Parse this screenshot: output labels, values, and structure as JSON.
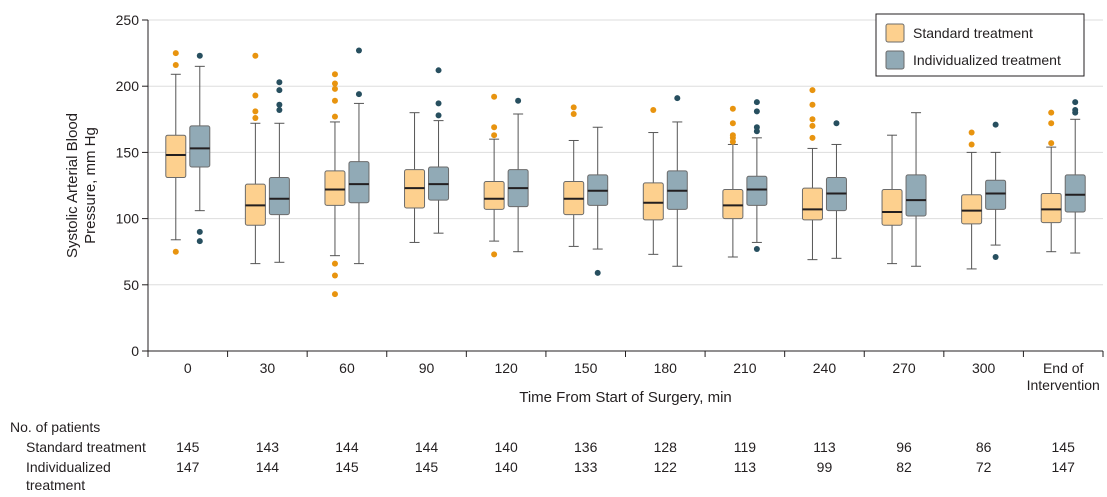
{
  "chart_data": {
    "type": "box",
    "ylabel": "Systolic Arterial Blood Pressure, mm Hg",
    "xlabel": "Time From Start of Surgery, min",
    "ylim": [
      0,
      250
    ],
    "yticks": [
      0,
      50,
      100,
      150,
      200,
      250
    ],
    "grid": "horizontal",
    "legend_position": "top-right",
    "categories": [
      "0",
      "30",
      "60",
      "90",
      "120",
      "150",
      "180",
      "210",
      "240",
      "270",
      "300",
      "End of Intervention"
    ],
    "category_lines": [
      [
        "0"
      ],
      [
        "30"
      ],
      [
        "60"
      ],
      [
        "90"
      ],
      [
        "120"
      ],
      [
        "150"
      ],
      [
        "180"
      ],
      [
        "210"
      ],
      [
        "240"
      ],
      [
        "270"
      ],
      [
        "300"
      ],
      [
        "End of",
        "Intervention"
      ]
    ],
    "series": [
      {
        "name": "Standard treatment",
        "color": "#fdd08e",
        "outlier_color": "#e8940f",
        "boxes": [
          {
            "min": 84,
            "q1": 131,
            "median": 148,
            "q3": 163,
            "max": 209,
            "outliers": [
              75,
              216,
              225
            ]
          },
          {
            "min": 66,
            "q1": 95,
            "median": 110,
            "q3": 126,
            "max": 172,
            "outliers": [
              176,
              181,
              193,
              223
            ]
          },
          {
            "min": 72,
            "q1": 110,
            "median": 122,
            "q3": 136,
            "max": 173,
            "outliers": [
              43,
              57,
              66,
              177,
              189,
              198,
              202,
              209
            ]
          },
          {
            "min": 82,
            "q1": 108,
            "median": 123,
            "q3": 137,
            "max": 180,
            "outliers": []
          },
          {
            "min": 83,
            "q1": 107,
            "median": 115,
            "q3": 128,
            "max": 160,
            "outliers": [
              73,
              163,
              169,
              192
            ]
          },
          {
            "min": 79,
            "q1": 103,
            "median": 115,
            "q3": 128,
            "max": 159,
            "outliers": [
              179,
              184
            ]
          },
          {
            "min": 73,
            "q1": 99,
            "median": 112,
            "q3": 127,
            "max": 165,
            "outliers": [
              182
            ]
          },
          {
            "min": 71,
            "q1": 100,
            "median": 110,
            "q3": 122,
            "max": 156,
            "outliers": [
              158,
              161,
              163,
              172,
              183
            ]
          },
          {
            "min": 69,
            "q1": 99,
            "median": 107,
            "q3": 123,
            "max": 153,
            "outliers": [
              161,
              170,
              175,
              186,
              197
            ]
          },
          {
            "min": 66,
            "q1": 95,
            "median": 105,
            "q3": 122,
            "max": 163,
            "outliers": []
          },
          {
            "min": 62,
            "q1": 96,
            "median": 106,
            "q3": 118,
            "max": 150,
            "outliers": [
              156,
              165
            ]
          },
          {
            "min": 75,
            "q1": 97,
            "median": 107,
            "q3": 119,
            "max": 154,
            "outliers": [
              157,
              172,
              180
            ]
          }
        ]
      },
      {
        "name": "Individualized treatment",
        "color": "#91aab6",
        "outlier_color": "#274f5f",
        "boxes": [
          {
            "min": 106,
            "q1": 139,
            "median": 153,
            "q3": 170,
            "max": 215,
            "outliers": [
              83,
              90,
              223
            ]
          },
          {
            "min": 67,
            "q1": 103,
            "median": 115,
            "q3": 131,
            "max": 172,
            "outliers": [
              182,
              186,
              197,
              203
            ]
          },
          {
            "min": 66,
            "q1": 112,
            "median": 126,
            "q3": 143,
            "max": 187,
            "outliers": [
              194,
              227
            ]
          },
          {
            "min": 89,
            "q1": 114,
            "median": 126,
            "q3": 139,
            "max": 174,
            "outliers": [
              178,
              187,
              212
            ]
          },
          {
            "min": 75,
            "q1": 109,
            "median": 123,
            "q3": 137,
            "max": 179,
            "outliers": [
              189
            ]
          },
          {
            "min": 77,
            "q1": 110,
            "median": 121,
            "q3": 133,
            "max": 169,
            "outliers": [
              59
            ]
          },
          {
            "min": 64,
            "q1": 107,
            "median": 121,
            "q3": 136,
            "max": 173,
            "outliers": [
              191
            ]
          },
          {
            "min": 82,
            "q1": 110,
            "median": 122,
            "q3": 132,
            "max": 161,
            "outliers": [
              77,
              166,
              169,
              181,
              188
            ]
          },
          {
            "min": 70,
            "q1": 106,
            "median": 119,
            "q3": 131,
            "max": 156,
            "outliers": [
              172
            ]
          },
          {
            "min": 64,
            "q1": 102,
            "median": 114,
            "q3": 133,
            "max": 180,
            "outliers": []
          },
          {
            "min": 80,
            "q1": 107,
            "median": 119,
            "q3": 129,
            "max": 150,
            "outliers": [
              71,
              171
            ]
          },
          {
            "min": 74,
            "q1": 105,
            "median": 118,
            "q3": 133,
            "max": 175,
            "outliers": [
              180,
              182,
              188
            ]
          }
        ]
      }
    ],
    "patients_table": {
      "title": "No. of patients",
      "rows": [
        {
          "label_lines": [
            "Standard treatment"
          ],
          "values": [
            145,
            143,
            144,
            144,
            140,
            136,
            128,
            119,
            113,
            96,
            86,
            145
          ]
        },
        {
          "label_lines": [
            "Individualized",
            "treatment"
          ],
          "values": [
            147,
            144,
            145,
            145,
            140,
            133,
            122,
            113,
            99,
            82,
            72,
            147
          ]
        }
      ]
    }
  }
}
